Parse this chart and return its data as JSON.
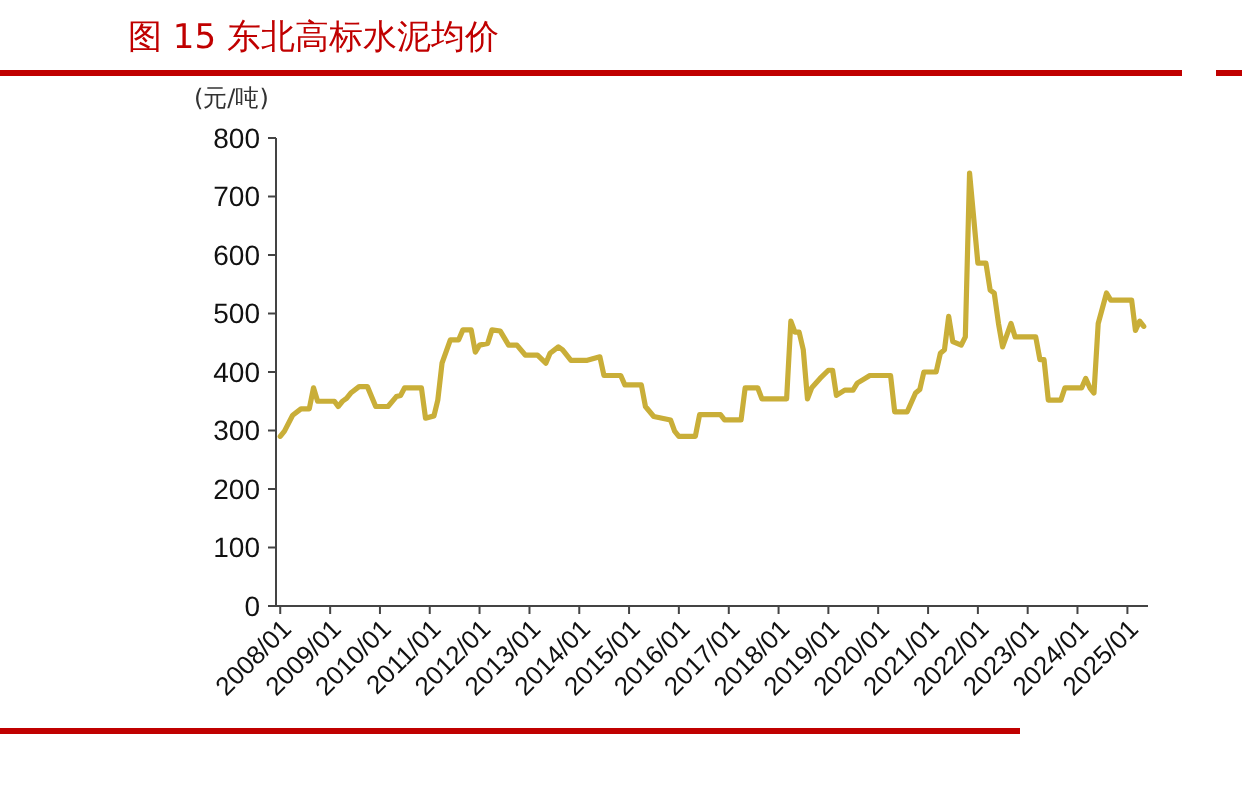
{
  "chart_data": {
    "type": "line",
    "title": "图 15 东北高标水泥均价",
    "ylabel": "(元/吨)",
    "x": [
      "2008-01",
      "2008-02",
      "2008-04",
      "2008-06",
      "2008-08",
      "2008-09",
      "2008-10",
      "2009-02",
      "2009-03",
      "2009-04",
      "2009-05",
      "2009-06",
      "2009-08",
      "2009-10",
      "2009-12",
      "2010-03",
      "2010-05",
      "2010-06",
      "2010-07",
      "2010-11",
      "2010-12",
      "2011-02",
      "2011-03",
      "2011-04",
      "2011-06",
      "2011-08",
      "2011-09",
      "2011-11",
      "2011-12",
      "2012-01",
      "2012-03",
      "2012-04",
      "2012-06",
      "2012-08",
      "2012-10",
      "2012-12",
      "2013-03",
      "2013-05",
      "2013-06",
      "2013-08",
      "2013-09",
      "2013-11",
      "2014-03",
      "2014-06",
      "2014-07",
      "2014-11",
      "2014-12",
      "2015-04",
      "2015-05",
      "2015-07",
      "2015-11",
      "2015-12",
      "2016-01",
      "2016-05",
      "2016-06",
      "2016-11",
      "2016-12",
      "2017-04",
      "2017-05",
      "2017-08",
      "2017-09",
      "2018-03",
      "2018-04",
      "2018-05",
      "2018-06",
      "2018-07",
      "2018-08",
      "2018-09",
      "2018-11",
      "2019-01",
      "2019-02",
      "2019-03",
      "2019-05",
      "2019-07",
      "2019-08",
      "2019-11",
      "2020-04",
      "2020-05",
      "2020-08",
      "2020-10",
      "2020-11",
      "2020-12",
      "2021-03",
      "2021-04",
      "2021-05",
      "2021-06",
      "2021-07",
      "2021-09",
      "2021-10",
      "2021-11",
      "2022-01",
      "2022-03",
      "2022-04",
      "2022-05",
      "2022-06",
      "2022-07",
      "2022-09",
      "2022-10",
      "2023-03",
      "2023-04",
      "2023-05",
      "2023-06",
      "2023-09",
      "2023-10",
      "2024-02",
      "2024-03",
      "2024-04",
      "2024-05",
      "2024-06",
      "2024-08",
      "2024-09",
      "2025-02",
      "2025-03",
      "2025-04",
      "2025-05"
    ],
    "series": [
      {
        "color": "#c9ae38",
        "values": [
          290,
          299,
          326,
          337,
          337,
          373,
          350,
          350,
          341,
          350,
          355,
          364,
          375,
          375,
          341,
          341,
          358,
          360,
          373,
          373,
          321,
          325,
          352,
          415,
          455,
          455,
          472,
          472,
          434,
          446,
          449,
          472,
          470,
          446,
          446,
          429,
          429,
          415,
          432,
          443,
          438,
          420,
          420,
          426,
          394,
          394,
          378,
          378,
          341,
          324,
          318,
          299,
          290,
          290,
          327,
          327,
          318,
          318,
          373,
          373,
          354,
          354,
          487,
          468,
          468,
          438,
          354,
          373,
          389,
          403,
          403,
          360,
          369,
          369,
          381,
          394,
          394,
          332,
          332,
          364,
          370,
          400,
          400,
          432,
          438,
          495,
          452,
          446,
          460,
          740,
          586,
          586,
          540,
          535,
          483,
          443,
          483,
          460,
          460,
          421,
          421,
          352,
          352,
          373,
          373,
          389,
          373,
          364,
          483,
          535,
          523,
          523,
          471,
          487,
          478
        ]
      }
    ],
    "xlim": [
      "2007-12",
      "2025-06"
    ],
    "xticks": [
      {
        "value": "2008-01",
        "label": "2008/01"
      },
      {
        "value": "2009-01",
        "label": "2009/01"
      },
      {
        "value": "2010-01",
        "label": "2010/01"
      },
      {
        "value": "2011-01",
        "label": "2011/01"
      },
      {
        "value": "2012-01",
        "label": "2012/01"
      },
      {
        "value": "2013-01",
        "label": "2013/01"
      },
      {
        "value": "2014-01",
        "label": "2014/01"
      },
      {
        "value": "2015-01",
        "label": "2015/01"
      },
      {
        "value": "2016-01",
        "label": "2016/01"
      },
      {
        "value": "2017-01",
        "label": "2017/01"
      },
      {
        "value": "2018-01",
        "label": "2018/01"
      },
      {
        "value": "2019-01",
        "label": "2019/01"
      },
      {
        "value": "2020-01",
        "label": "2020/01"
      },
      {
        "value": "2021-01",
        "label": "2021/01"
      },
      {
        "value": "2022-01",
        "label": "2022/01"
      },
      {
        "value": "2023-01",
        "label": "2023/01"
      },
      {
        "value": "2024-01",
        "label": "2024/01"
      },
      {
        "value": "2025-01",
        "label": "2025/01"
      }
    ],
    "ylim": [
      0,
      800
    ],
    "yticks": [
      0,
      100,
      200,
      300,
      400,
      500,
      600,
      700,
      800
    ],
    "grid": false
  }
}
